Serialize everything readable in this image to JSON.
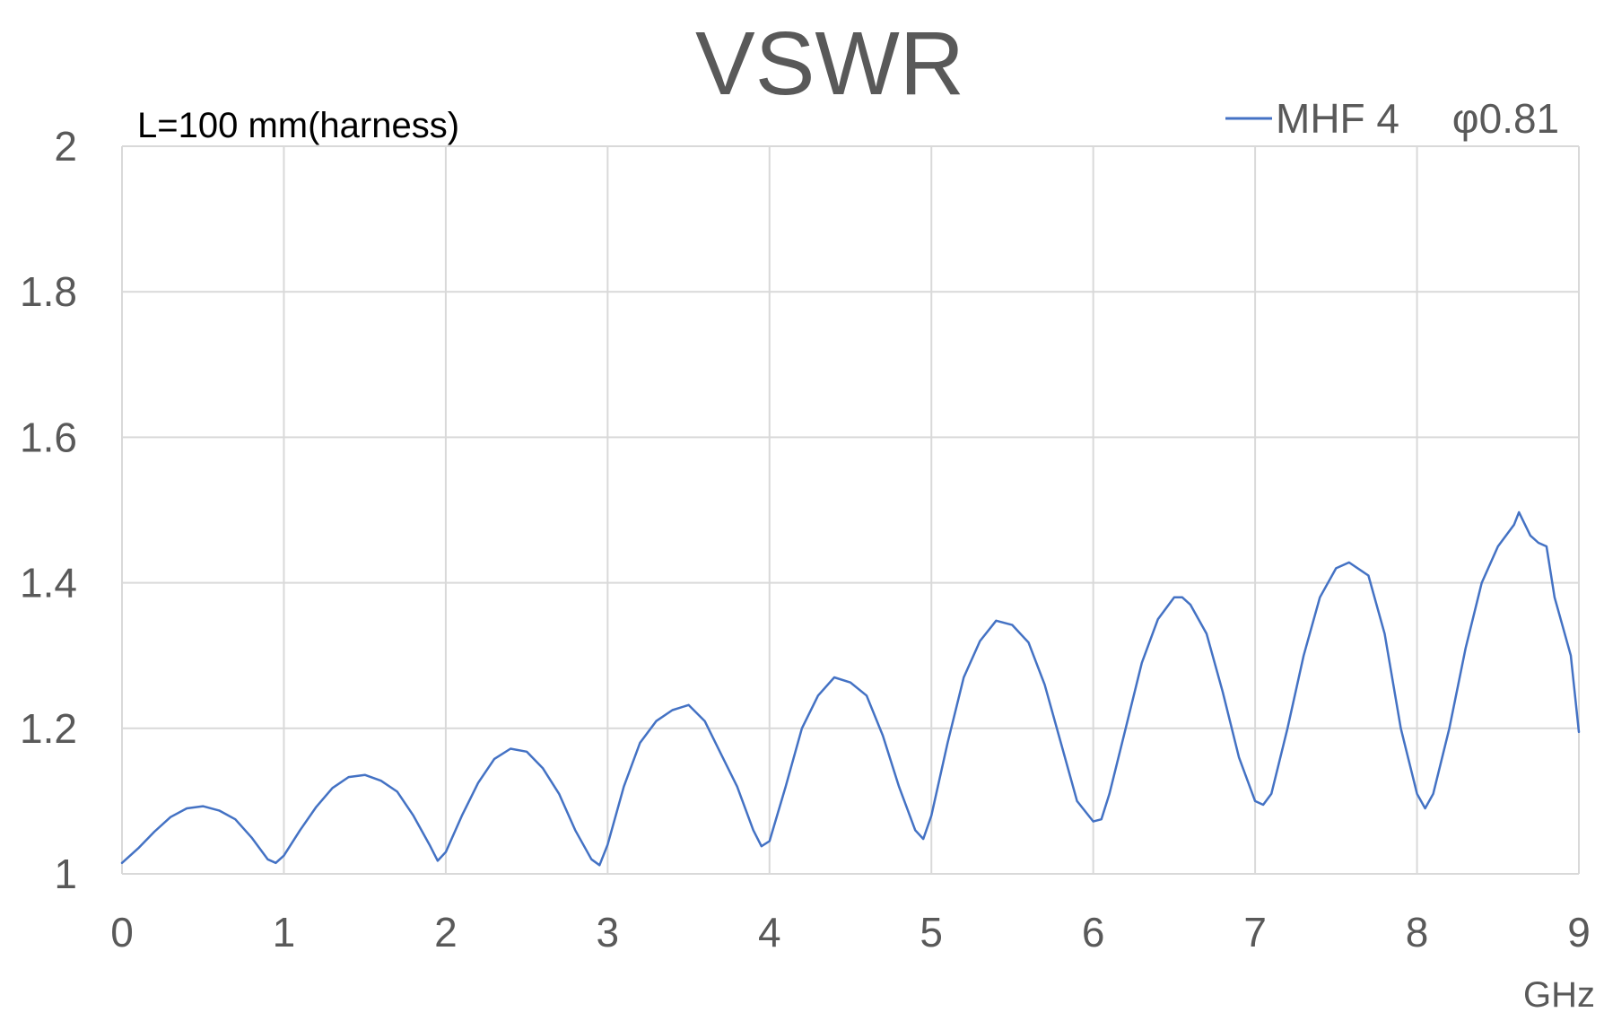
{
  "chart_data": {
    "type": "line",
    "title": "VSWR",
    "annotation": "L=100 mm(harness)",
    "x_unit_label": "GHz",
    "xlim": [
      0,
      9
    ],
    "ylim": [
      1,
      2
    ],
    "x_ticks": [
      "0",
      "1",
      "2",
      "3",
      "4",
      "5",
      "6",
      "7",
      "8",
      "9"
    ],
    "y_ticks": [
      "1",
      "1.2",
      "1.4",
      "1.6",
      "1.8",
      "2"
    ],
    "grid": true,
    "legend_position": "top-right",
    "series": [
      {
        "name": "MHF 4　 φ0.81",
        "color": "#4472c4",
        "x": [
          0.0,
          0.1,
          0.2,
          0.3,
          0.4,
          0.5,
          0.6,
          0.7,
          0.8,
          0.9,
          0.95,
          1.0,
          1.1,
          1.2,
          1.3,
          1.4,
          1.5,
          1.6,
          1.7,
          1.8,
          1.9,
          1.95,
          2.0,
          2.1,
          2.2,
          2.3,
          2.4,
          2.5,
          2.6,
          2.7,
          2.8,
          2.9,
          2.95,
          3.0,
          3.1,
          3.2,
          3.3,
          3.4,
          3.5,
          3.6,
          3.7,
          3.8,
          3.9,
          3.95,
          4.0,
          4.1,
          4.2,
          4.3,
          4.4,
          4.5,
          4.6,
          4.7,
          4.8,
          4.9,
          4.95,
          5.0,
          5.1,
          5.2,
          5.3,
          5.4,
          5.5,
          5.6,
          5.7,
          5.8,
          5.9,
          6.0,
          6.05,
          6.1,
          6.2,
          6.3,
          6.4,
          6.5,
          6.55,
          6.6,
          6.7,
          6.8,
          6.9,
          7.0,
          7.05,
          7.1,
          7.2,
          7.3,
          7.4,
          7.5,
          7.58,
          7.7,
          7.8,
          7.9,
          8.0,
          8.05,
          8.1,
          8.2,
          8.3,
          8.4,
          8.5,
          8.6,
          8.63,
          8.7,
          8.75,
          8.8,
          8.85,
          8.9,
          8.95,
          9.0
        ],
        "y": [
          1.015,
          1.035,
          1.058,
          1.078,
          1.09,
          1.093,
          1.087,
          1.075,
          1.05,
          1.02,
          1.015,
          1.025,
          1.06,
          1.092,
          1.118,
          1.133,
          1.136,
          1.128,
          1.113,
          1.08,
          1.04,
          1.018,
          1.03,
          1.08,
          1.125,
          1.158,
          1.172,
          1.168,
          1.145,
          1.11,
          1.06,
          1.02,
          1.012,
          1.04,
          1.12,
          1.18,
          1.21,
          1.225,
          1.232,
          1.21,
          1.165,
          1.12,
          1.06,
          1.038,
          1.045,
          1.12,
          1.2,
          1.245,
          1.27,
          1.263,
          1.245,
          1.19,
          1.12,
          1.06,
          1.048,
          1.08,
          1.18,
          1.27,
          1.32,
          1.348,
          1.342,
          1.318,
          1.26,
          1.18,
          1.1,
          1.072,
          1.075,
          1.11,
          1.2,
          1.29,
          1.35,
          1.38,
          1.38,
          1.37,
          1.33,
          1.25,
          1.16,
          1.1,
          1.095,
          1.11,
          1.2,
          1.3,
          1.38,
          1.42,
          1.428,
          1.41,
          1.33,
          1.2,
          1.11,
          1.09,
          1.11,
          1.2,
          1.31,
          1.4,
          1.45,
          1.48,
          1.497,
          1.465,
          1.455,
          1.45,
          1.38,
          1.34,
          1.3,
          1.195
        ]
      }
    ]
  }
}
